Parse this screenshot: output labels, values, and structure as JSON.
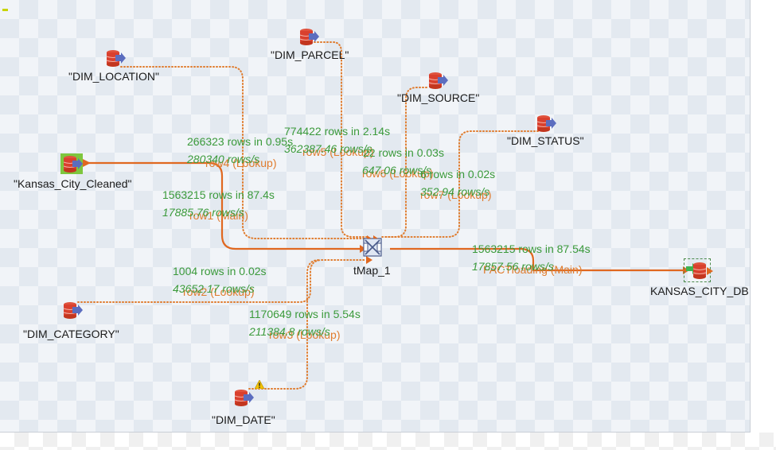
{
  "colors": {
    "main_link": "#e06820",
    "lookup_link": "#e07c2e",
    "stats": "#3b9a3b",
    "db_red": "#d9402e",
    "db_blue": "#5b6dbf"
  },
  "nodes": {
    "dim_location": "\"DIM_LOCATION\"",
    "dim_parcel": "\"DIM_PARCEL\"",
    "dim_source": "\"DIM_SOURCE\"",
    "dim_status": "\"DIM_STATUS\"",
    "kansas_city_cleaned": "\"Kansas_City_Cleaned\"",
    "tmap": "tMap_1",
    "kansas_city_db": "KANSAS_CITY_DB",
    "dim_category": "\"DIM_CATEGORY\"",
    "dim_date": "\"DIM_DATE\""
  },
  "links": {
    "row4": {
      "label": "row4 (Lookup)",
      "rows": "266323 rows in 0.95s",
      "rate": "280340 rows/s"
    },
    "row5": {
      "label": "row5 (Lookup)",
      "rows": "774422 rows in 2.14s",
      "rate": "362387.46 rows/s"
    },
    "row6": {
      "label": "row6 (Lookup)",
      "rows": "22 rows in 0.03s",
      "rate": "647.06 rows/s"
    },
    "row7": {
      "label": "row7 (Lookup)",
      "rows": "6 rows in 0.02s",
      "rate": "352.94 rows/s"
    },
    "row1": {
      "label": "row1 (Main)",
      "rows": "1563215 rows in 87.4s",
      "rate": "17885.76 rows/s"
    },
    "row2": {
      "label": "row2 (Lookup)",
      "rows": "1004 rows in 0.02s",
      "rate": "43652.17 rows/s"
    },
    "row3": {
      "label": "row3 (Lookup)",
      "rows": "1170649 rows in 5.54s",
      "rate": "211384.8 rows/s"
    },
    "load": {
      "label": "FACTloading (Main)",
      "rows": "1563215 rows in 87.54s",
      "rate": "17857.56 rows/s"
    }
  },
  "icons": {
    "db_input": "database-icon",
    "warning": "warning-icon",
    "tmap": "tmap-icon"
  }
}
